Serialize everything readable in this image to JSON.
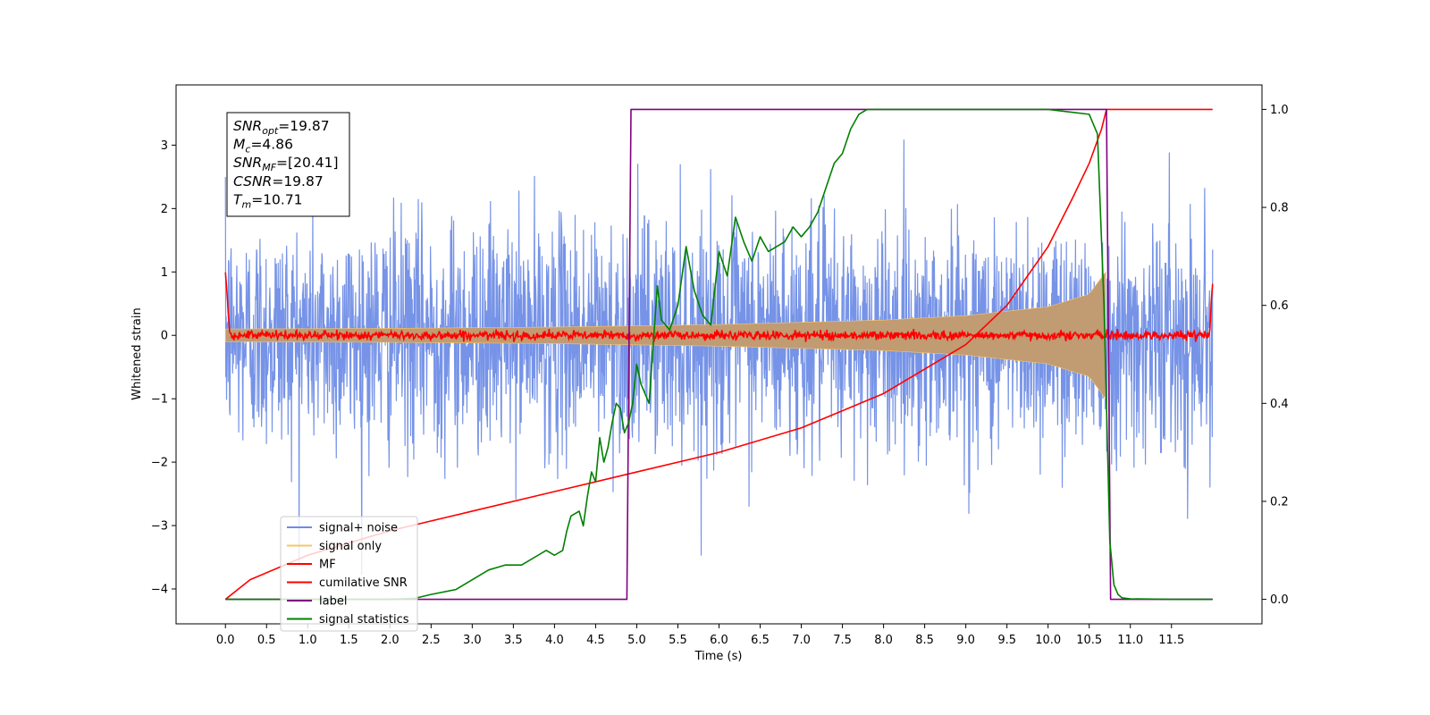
{
  "chart_data": {
    "type": "line",
    "xlabel": "Time (s)",
    "ylabel": "Whitened strain",
    "xlim": [
      -0.6,
      12.6
    ],
    "ylim": [
      -4.55,
      3.95
    ],
    "y2lim": [
      -0.05,
      1.05
    ],
    "x_ticks": [
      0.0,
      0.5,
      1.0,
      1.5,
      2.0,
      2.5,
      3.0,
      3.5,
      4.0,
      4.5,
      5.0,
      5.5,
      6.0,
      6.5,
      7.0,
      7.5,
      8.0,
      8.5,
      9.0,
      9.5,
      10.0,
      10.5,
      11.0,
      11.5
    ],
    "x_tick_labels": [
      "0.0",
      "0.5",
      "1.0",
      "1.5",
      "2.0",
      "2.5",
      "3.0",
      "3.5",
      "4.0",
      "4.5",
      "5.0",
      "5.5",
      "6.0",
      "6.5",
      "7.0",
      "7.5",
      "8.0",
      "8.5",
      "9.0",
      "9.5",
      "10.0",
      "10.5",
      "11.0",
      "11.5"
    ],
    "y_ticks": [
      -4,
      -3,
      -2,
      -1,
      0,
      1,
      2,
      3
    ],
    "y_tick_labels": [
      "−4",
      "−3",
      "−2",
      "−1",
      "0",
      "1",
      "2",
      "3"
    ],
    "y2_ticks": [
      0.0,
      0.2,
      0.4,
      0.6,
      0.8,
      1.0
    ],
    "y2_tick_labels": [
      "0.0",
      "0.2",
      "0.4",
      "0.6",
      "0.8",
      "1.0"
    ],
    "annotation": [
      {
        "base": "SNR",
        "sub": "opt",
        "value": "=19.87"
      },
      {
        "base": "M",
        "sub": "c",
        "value": "=4.86"
      },
      {
        "base": "SNR",
        "sub": "MF",
        "value": "=[20.41]"
      },
      {
        "base": "CSNR",
        "sub": "",
        "value": "=19.87"
      },
      {
        "base": "T",
        "sub": "m",
        "value": "=10.71"
      }
    ],
    "legend_position": "lower-left",
    "series": [
      {
        "name": "signal+ noise",
        "color": "#6f8de6",
        "axis": "left",
        "description": "noise around 0 with std ~0.9 over 0 to 12 s",
        "x_range": [
          0.0,
          12.0
        ],
        "std": 0.9
      },
      {
        "name": "signal only",
        "color": "#f7c565",
        "axis": "left",
        "description": "chirp whose envelope grows from ~0.1 to ~1.0 at 10.7 s, then drops to 0",
        "envelope_x": [
          0.0,
          2.0,
          4.0,
          6.0,
          8.0,
          9.0,
          10.0,
          10.5,
          10.7
        ],
        "envelope": [
          0.1,
          0.11,
          0.13,
          0.17,
          0.24,
          0.31,
          0.45,
          0.65,
          1.0
        ]
      },
      {
        "name": "MF",
        "color": "#ff0000",
        "axis": "left",
        "description": "matched-filter output ~0 with small noise, spikes to 1.0 at t=0 and 0.9 at t=12",
        "x_range": [
          0.0,
          12.0
        ],
        "start_value": 1.0,
        "end_value": 0.9
      },
      {
        "name": "cumilative SNR",
        "color": "#ff0000",
        "axis": "right",
        "x": [
          0.0,
          0.3,
          1.0,
          2.0,
          3.0,
          4.0,
          5.0,
          6.0,
          7.0,
          8.0,
          9.0,
          9.5,
          10.0,
          10.3,
          10.5,
          10.65,
          10.71,
          12.0
        ],
        "y": [
          0.0,
          0.04,
          0.09,
          0.14,
          0.18,
          0.22,
          0.26,
          0.3,
          0.35,
          0.42,
          0.52,
          0.6,
          0.72,
          0.82,
          0.89,
          0.96,
          1.0,
          1.0
        ]
      },
      {
        "name": "label",
        "color": "#800080",
        "axis": "right",
        "x": [
          0.0,
          4.88,
          4.93,
          10.71,
          10.76,
          12.0
        ],
        "y": [
          0.0,
          0.0,
          1.0,
          1.0,
          0.0,
          0.0
        ]
      },
      {
        "name": "signal statistics",
        "color": "#008000",
        "axis": "right",
        "x": [
          0.0,
          2.0,
          2.3,
          2.5,
          2.8,
          3.0,
          3.2,
          3.4,
          3.6,
          3.8,
          3.9,
          4.0,
          4.1,
          4.15,
          4.2,
          4.3,
          4.35,
          4.4,
          4.45,
          4.5,
          4.55,
          4.6,
          4.65,
          4.7,
          4.75,
          4.8,
          4.85,
          4.9,
          4.95,
          5.0,
          5.05,
          5.1,
          5.15,
          5.2,
          5.25,
          5.3,
          5.4,
          5.5,
          5.6,
          5.7,
          5.8,
          5.9,
          6.0,
          6.1,
          6.2,
          6.3,
          6.4,
          6.5,
          6.6,
          6.7,
          6.8,
          6.9,
          7.0,
          7.1,
          7.2,
          7.3,
          7.4,
          7.5,
          7.6,
          7.7,
          7.8,
          8.0,
          8.3,
          8.6,
          9.0,
          10.0,
          10.5,
          10.6,
          10.68,
          10.75,
          10.8,
          10.85,
          10.9,
          11.0,
          11.5,
          12.0
        ],
        "y": [
          0.0,
          0.0,
          0.002,
          0.01,
          0.02,
          0.04,
          0.06,
          0.07,
          0.07,
          0.09,
          0.1,
          0.09,
          0.1,
          0.14,
          0.17,
          0.18,
          0.15,
          0.21,
          0.26,
          0.24,
          0.33,
          0.28,
          0.31,
          0.36,
          0.4,
          0.39,
          0.34,
          0.36,
          0.4,
          0.48,
          0.44,
          0.42,
          0.4,
          0.52,
          0.64,
          0.57,
          0.55,
          0.6,
          0.72,
          0.63,
          0.58,
          0.56,
          0.71,
          0.66,
          0.78,
          0.73,
          0.69,
          0.74,
          0.71,
          0.72,
          0.73,
          0.76,
          0.74,
          0.76,
          0.79,
          0.84,
          0.89,
          0.91,
          0.96,
          0.99,
          1.0,
          1.0,
          1.0,
          1.0,
          1.0,
          1.0,
          0.99,
          0.95,
          0.6,
          0.12,
          0.03,
          0.01,
          0.003,
          0.001,
          0.0,
          0.0
        ]
      }
    ]
  }
}
